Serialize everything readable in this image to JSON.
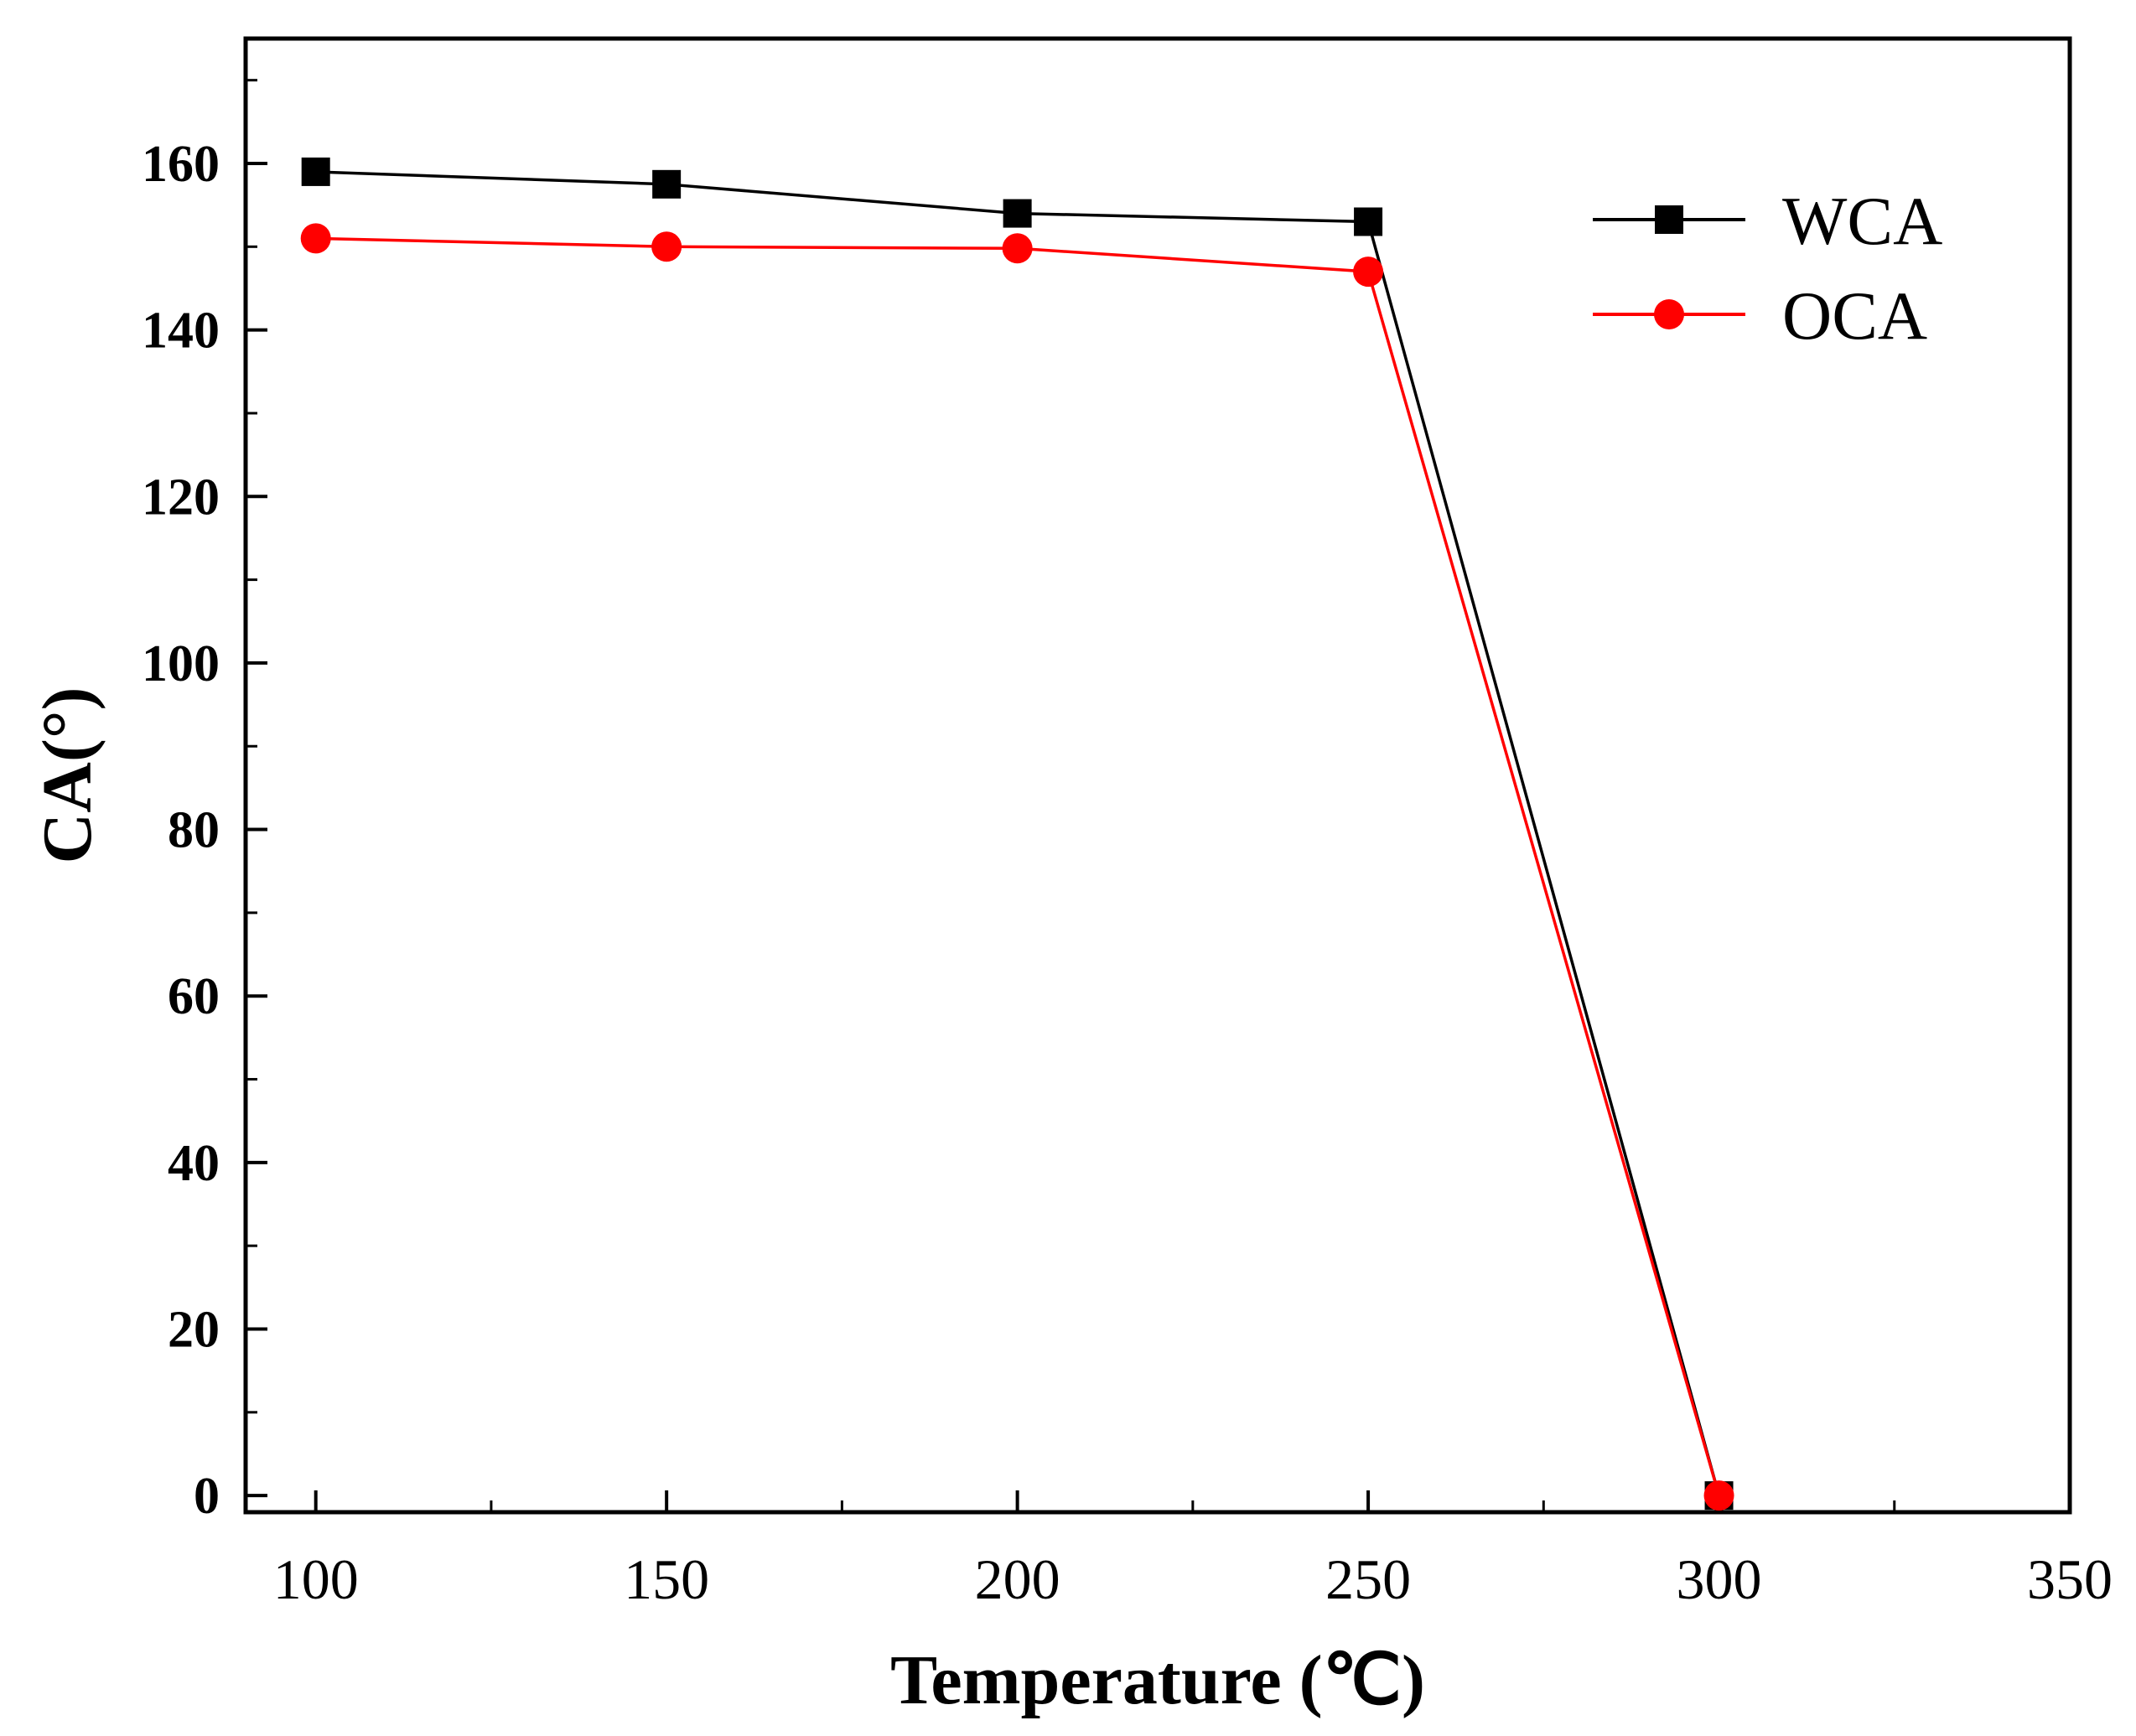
{
  "chart_data": {
    "type": "line",
    "title": "",
    "xlabel": "Temperature (℃)",
    "ylabel": "CA(°)",
    "xlim": [
      90,
      350
    ],
    "ylim": [
      -2,
      175
    ],
    "x_major_ticks": [
      100,
      150,
      200,
      250,
      300,
      350
    ],
    "x_tick_labels": [
      "100",
      "150",
      "200",
      "250",
      "300",
      "350"
    ],
    "x_minor_ticks": [
      125,
      175,
      225,
      275,
      325
    ],
    "y_major_ticks": [
      0,
      20,
      40,
      60,
      80,
      100,
      120,
      140,
      160
    ],
    "y_tick_labels": [
      "0",
      "20",
      "40",
      "60",
      "80",
      "100",
      "120",
      "140",
      "160"
    ],
    "y_minor_ticks": [
      10,
      30,
      50,
      70,
      90,
      110,
      130,
      150,
      170
    ],
    "grid": false,
    "legend_position": "top-right",
    "series": [
      {
        "name": "WCA",
        "marker": "square",
        "color": "#000000",
        "x": [
          100,
          150,
          200,
          250,
          300
        ],
        "y": [
          159,
          157.5,
          154,
          153,
          0
        ]
      },
      {
        "name": "OCA",
        "marker": "circle",
        "color": "#ff0000",
        "x": [
          100,
          150,
          200,
          250,
          300
        ],
        "y": [
          151,
          150,
          149.8,
          147,
          0
        ]
      }
    ]
  }
}
